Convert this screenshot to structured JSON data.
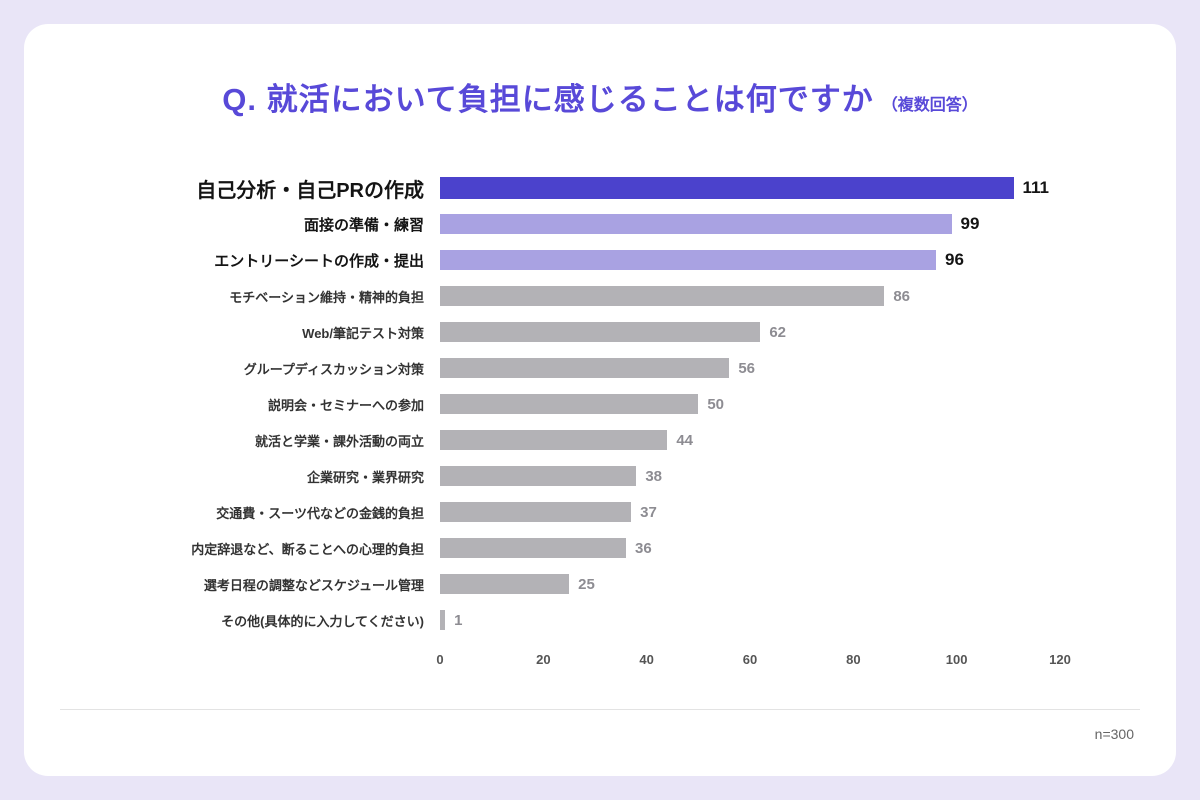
{
  "chart_data": {
    "type": "bar",
    "orientation": "horizontal",
    "title": "Q. 就活において負担に感じることは何ですか",
    "title_suffix": "（複数回答）",
    "categories": [
      "自己分析・自己PRの作成",
      "面接の準備・練習",
      "エントリーシートの作成・提出",
      "モチベーション維持・精神的負担",
      "Web/筆記テスト対策",
      "グループディスカッション対策",
      "説明会・セミナーへの参加",
      "就活と学業・課外活動の両立",
      "企業研究・業界研究",
      "交通費・スーツ代などの金銭的負担",
      "内定辞退など、断ることへの心理的負担",
      "選考日程の調整などスケジュール管理",
      "その他(具体的に入力してください)"
    ],
    "values": [
      111,
      99,
      96,
      86,
      62,
      56,
      50,
      44,
      38,
      37,
      36,
      25,
      1
    ],
    "emphasis": [
      2,
      1,
      1,
      0,
      0,
      0,
      0,
      0,
      0,
      0,
      0,
      0,
      0
    ],
    "xlim": [
      0,
      120
    ],
    "x_ticks": [
      0,
      20,
      40,
      60,
      80,
      100,
      120
    ],
    "grid": false,
    "legend": false,
    "note": "n=300"
  },
  "colors": {
    "background": "#e9e5f7",
    "card": "#ffffff",
    "title": "#5849d8",
    "bar_primary": "#4b42cc",
    "bar_secondary": "#a9a2e2",
    "bar_default": "#b3b2b6",
    "value_emphasis": "#141414",
    "value_default": "#8d8c92",
    "label_emphasis": "#141414",
    "label_default": "#333333",
    "axis_tick": "#555555",
    "divider": "#e3e3e3",
    "note": "#666666"
  }
}
